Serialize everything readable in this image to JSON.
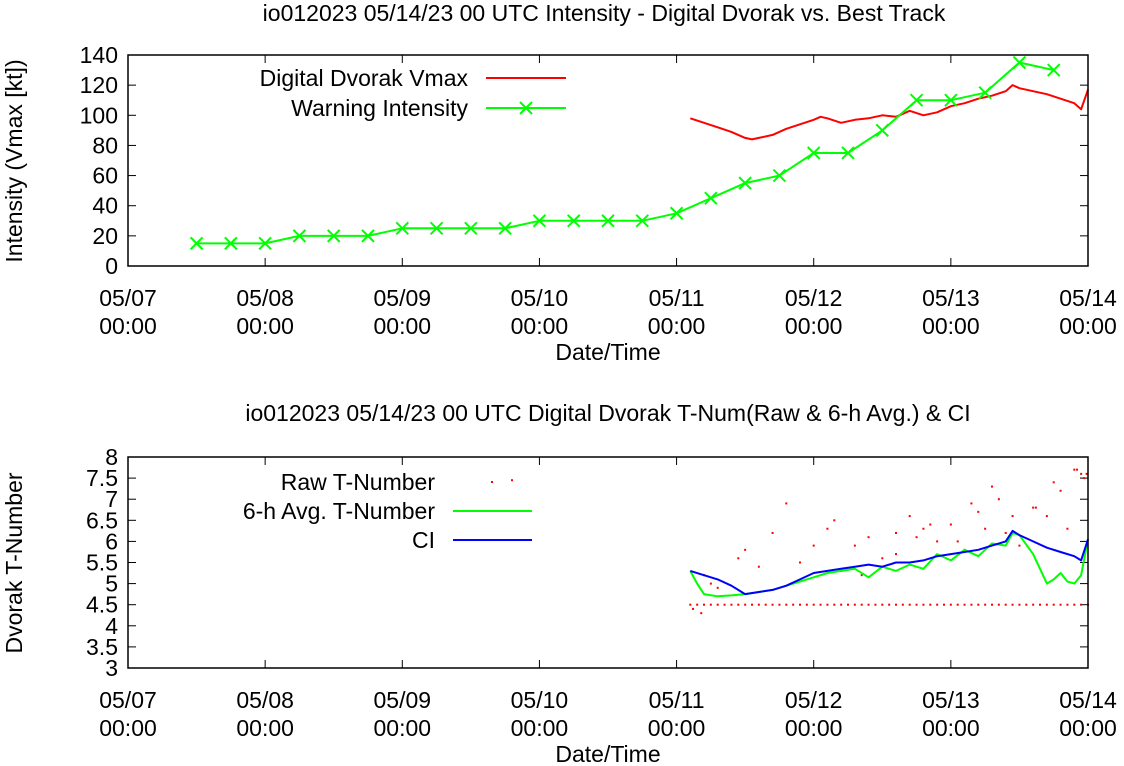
{
  "chart_data": [
    {
      "type": "line",
      "title": "io012023 05/14/23  00 UTC Intensity - Digital Dvorak vs. Best Track",
      "xlabel": "Date/Time",
      "ylabel": "Intensity (Vmax [kt])",
      "xlim": [
        0,
        7
      ],
      "ylim": [
        0,
        140
      ],
      "x_tick_values": [
        0,
        1,
        2,
        3,
        4,
        5,
        6,
        7
      ],
      "x_tick_labels": [
        [
          "05/07",
          "00:00"
        ],
        [
          "05/08",
          "00:00"
        ],
        [
          "05/09",
          "00:00"
        ],
        [
          "05/10",
          "00:00"
        ],
        [
          "05/11",
          "00:00"
        ],
        [
          "05/12",
          "00:00"
        ],
        [
          "05/13",
          "00:00"
        ],
        [
          "05/14",
          "00:00"
        ]
      ],
      "y_ticks": [
        0,
        20,
        40,
        60,
        80,
        100,
        120,
        140
      ],
      "legend_position": "top-left",
      "series": [
        {
          "name": "Digital Dvorak Vmax",
          "color": "#ff0000",
          "marker": "none",
          "x": [
            4.1,
            4.2,
            4.3,
            4.4,
            4.5,
            4.55,
            4.6,
            4.7,
            4.8,
            4.9,
            5.0,
            5.05,
            5.1,
            5.2,
            5.3,
            5.4,
            5.5,
            5.6,
            5.7,
            5.8,
            5.9,
            6.0,
            6.1,
            6.2,
            6.3,
            6.4,
            6.45,
            6.5,
            6.6,
            6.7,
            6.8,
            6.9,
            6.95,
            7.0
          ],
          "y": [
            98,
            95,
            92,
            89,
            85,
            84,
            85,
            87,
            91,
            94,
            97,
            99,
            98,
            95,
            97,
            98,
            100,
            99,
            103,
            100,
            102,
            106,
            108,
            111,
            113,
            116,
            120,
            118,
            116,
            114,
            111,
            108,
            104,
            117
          ]
        },
        {
          "name": "Warning Intensity",
          "color": "#00ff00",
          "marker": "x",
          "x": [
            0.5,
            0.75,
            1.0,
            1.25,
            1.5,
            1.75,
            2.0,
            2.25,
            2.5,
            2.75,
            3.0,
            3.25,
            3.5,
            3.75,
            4.0,
            4.25,
            4.5,
            4.75,
            5.0,
            5.25,
            5.5,
            5.75,
            6.0,
            6.25,
            6.5,
            6.75
          ],
          "y": [
            15,
            15,
            15,
            20,
            20,
            20,
            25,
            25,
            25,
            25,
            30,
            30,
            30,
            30,
            35,
            45,
            55,
            60,
            75,
            75,
            90,
            110,
            110,
            115,
            135,
            130
          ]
        }
      ]
    },
    {
      "type": "line",
      "title": "io012023 05/14/23  00 UTC Digital Dvorak T-Num(Raw & 6-h Avg.) & CI",
      "xlabel": "Date/Time",
      "ylabel": "Dvorak T-Number",
      "xlim": [
        0,
        7
      ],
      "ylim": [
        3,
        8
      ],
      "x_tick_values": [
        0,
        1,
        2,
        3,
        4,
        5,
        6,
        7
      ],
      "x_tick_labels": [
        [
          "05/07",
          "00:00"
        ],
        [
          "05/08",
          "00:00"
        ],
        [
          "05/09",
          "00:00"
        ],
        [
          "05/10",
          "00:00"
        ],
        [
          "05/11",
          "00:00"
        ],
        [
          "05/12",
          "00:00"
        ],
        [
          "05/13",
          "00:00"
        ],
        [
          "05/14",
          "00:00"
        ]
      ],
      "y_ticks": [
        "3",
        "3.5",
        "4",
        "4.5",
        "5",
        "5.5",
        "6",
        "6.5",
        "7",
        "7.5",
        "8"
      ],
      "legend_position": "top-left",
      "series": [
        {
          "name": "Raw T-Number",
          "color": "#ff0000",
          "marker": "dot",
          "x": [
            4.1,
            4.12,
            4.15,
            4.18,
            4.2,
            4.25,
            4.3,
            4.35,
            4.4,
            4.45,
            4.5,
            4.55,
            4.6,
            4.65,
            4.7,
            4.75,
            4.8,
            4.85,
            4.9,
            4.95,
            5.0,
            5.05,
            5.1,
            5.15,
            5.2,
            5.25,
            5.3,
            5.35,
            5.4,
            5.45,
            5.5,
            5.55,
            5.6,
            5.65,
            5.7,
            5.75,
            5.8,
            5.85,
            5.9,
            5.95,
            6.0,
            6.05,
            6.1,
            6.15,
            6.2,
            6.25,
            6.3,
            6.35,
            6.4,
            6.45,
            6.5,
            6.55,
            6.6,
            6.65,
            6.7,
            6.75,
            6.8,
            6.85,
            6.9,
            6.95,
            7.0,
            4.2,
            4.3,
            4.45,
            4.6,
            4.8,
            5.0,
            5.1,
            5.2,
            5.3,
            5.4,
            5.5,
            5.6,
            5.7,
            5.8,
            5.9,
            6.0,
            6.1,
            6.2,
            6.3,
            6.4,
            6.5,
            6.6,
            6.7,
            6.8,
            6.9,
            6.95,
            6.97,
            4.25,
            4.5,
            4.7,
            4.9,
            5.15,
            5.35,
            5.6,
            5.75,
            5.85,
            6.05,
            6.15,
            6.25,
            6.35,
            6.45,
            6.62,
            6.75,
            6.85,
            6.92,
            6.99
          ],
          "y": [
            4.5,
            4.4,
            4.5,
            4.3,
            4.5,
            4.5,
            4.5,
            4.5,
            4.5,
            4.5,
            4.5,
            4.5,
            4.5,
            4.5,
            4.5,
            4.5,
            4.5,
            4.5,
            4.5,
            4.5,
            4.5,
            4.5,
            4.5,
            4.5,
            4.5,
            4.5,
            4.5,
            4.5,
            4.5,
            4.5,
            4.5,
            4.5,
            4.5,
            4.5,
            4.5,
            4.5,
            4.5,
            4.5,
            4.5,
            4.5,
            4.5,
            4.5,
            4.5,
            4.5,
            4.5,
            4.5,
            4.5,
            4.5,
            4.5,
            4.5,
            4.5,
            4.5,
            4.5,
            4.5,
            4.5,
            4.5,
            4.5,
            4.5,
            4.5,
            4.5,
            4.5,
            5.2,
            4.9,
            5.6,
            5.4,
            6.9,
            5.9,
            6.3,
            5.3,
            5.9,
            6.1,
            5.6,
            6.2,
            6.6,
            6.3,
            6.0,
            6.4,
            5.8,
            6.7,
            7.3,
            6.2,
            5.9,
            6.8,
            6.6,
            7.2,
            7.7,
            7.6,
            7.5,
            5.0,
            5.8,
            6.2,
            5.5,
            6.5,
            5.2,
            5.7,
            6.1,
            6.4,
            6.0,
            6.9,
            6.3,
            7.0,
            6.6,
            6.8,
            7.4,
            6.3,
            7.7,
            7.6
          ],
          "extra_point": [
            2.8,
            7.45
          ]
        },
        {
          "name": "6-h Avg. T-Number",
          "color": "#00ff00",
          "marker": "none",
          "x": [
            4.1,
            4.15,
            4.2,
            4.3,
            4.4,
            4.5,
            4.6,
            4.7,
            4.8,
            4.9,
            5.0,
            5.1,
            5.2,
            5.3,
            5.4,
            5.5,
            5.6,
            5.7,
            5.8,
            5.9,
            6.0,
            6.1,
            6.2,
            6.3,
            6.4,
            6.45,
            6.5,
            6.6,
            6.7,
            6.75,
            6.8,
            6.85,
            6.9,
            6.95,
            7.0
          ],
          "y": [
            5.3,
            5.0,
            4.75,
            4.7,
            4.72,
            4.75,
            4.8,
            4.85,
            4.95,
            5.05,
            5.15,
            5.25,
            5.3,
            5.35,
            5.15,
            5.4,
            5.3,
            5.45,
            5.35,
            5.7,
            5.55,
            5.8,
            5.65,
            5.95,
            5.9,
            6.2,
            6.15,
            5.7,
            5.0,
            5.1,
            5.25,
            5.05,
            5.0,
            5.2,
            6.05
          ]
        },
        {
          "name": "CI",
          "color": "#0000ff",
          "marker": "none",
          "x": [
            4.1,
            4.2,
            4.3,
            4.4,
            4.5,
            4.6,
            4.7,
            4.8,
            4.9,
            5.0,
            5.1,
            5.2,
            5.3,
            5.4,
            5.5,
            5.6,
            5.7,
            5.8,
            5.9,
            6.0,
            6.1,
            6.2,
            6.3,
            6.4,
            6.45,
            6.5,
            6.6,
            6.7,
            6.8,
            6.9,
            6.95,
            7.0
          ],
          "y": [
            5.3,
            5.2,
            5.1,
            4.95,
            4.75,
            4.8,
            4.85,
            4.95,
            5.1,
            5.25,
            5.3,
            5.35,
            5.4,
            5.45,
            5.4,
            5.5,
            5.5,
            5.55,
            5.65,
            5.7,
            5.75,
            5.8,
            5.9,
            6.0,
            6.25,
            6.15,
            6.0,
            5.85,
            5.75,
            5.65,
            5.55,
            6.05
          ]
        }
      ]
    }
  ]
}
